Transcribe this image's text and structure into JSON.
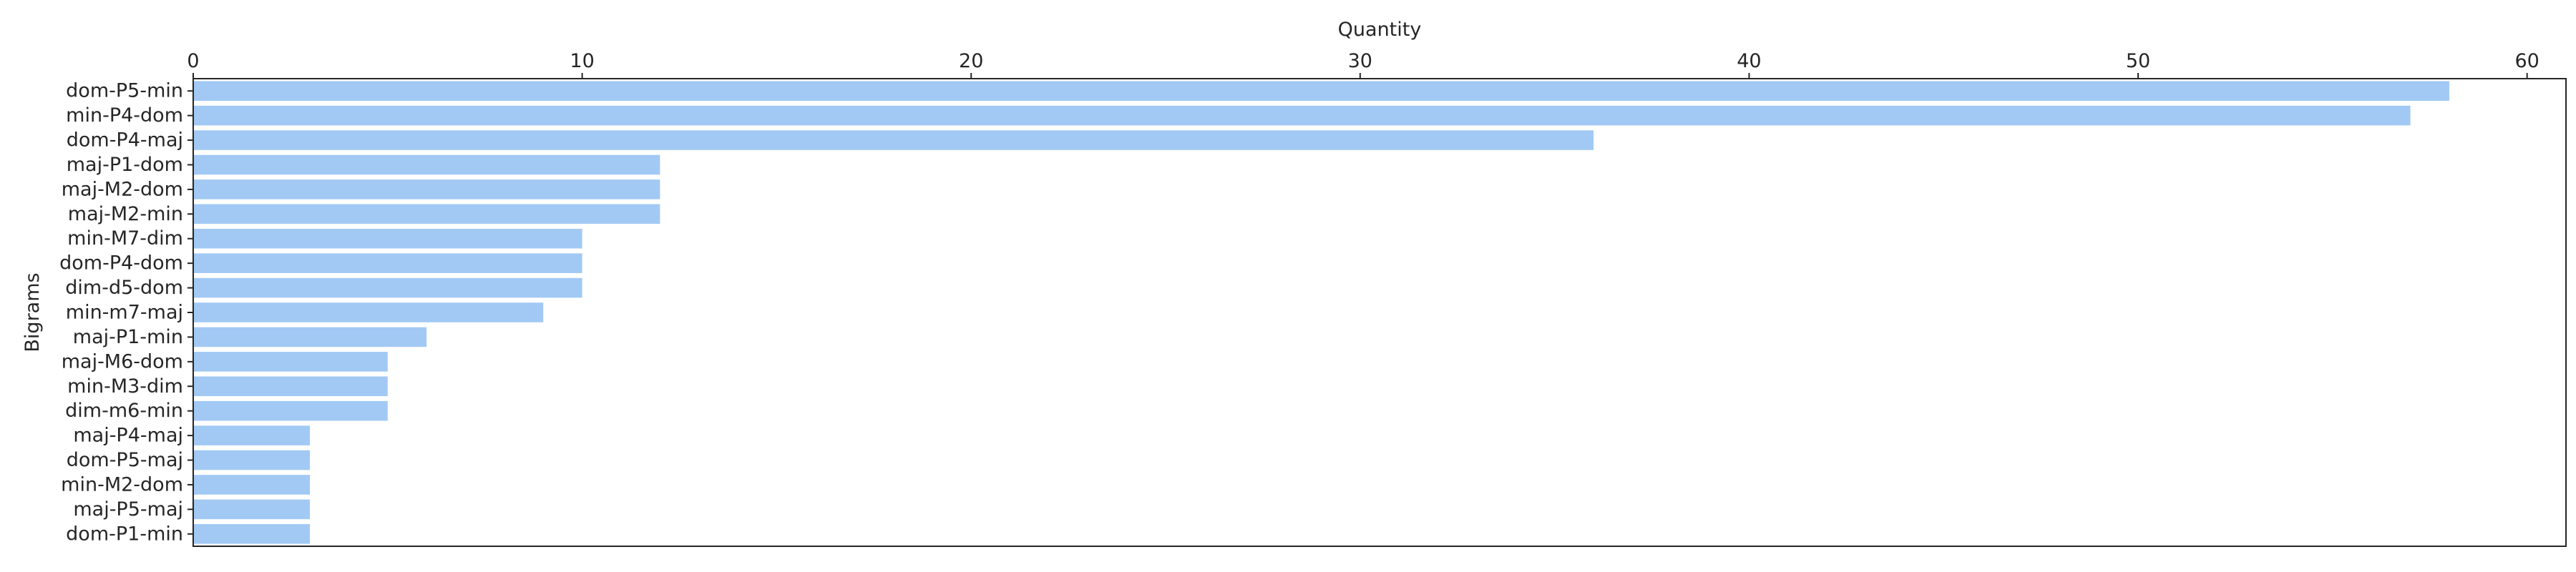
{
  "chart_data": {
    "type": "bar",
    "orientation": "horizontal",
    "title": "",
    "xlabel": "Quantity",
    "ylabel": "Bigrams",
    "xlim": [
      0,
      61
    ],
    "xticks": [
      0,
      10,
      20,
      30,
      40,
      50,
      60
    ],
    "x_axis_position": "top",
    "grid": false,
    "bar_color": "#a1c9f4",
    "categories": [
      "dom-P5-min",
      "min-P4-dom",
      "dom-P4-maj",
      "maj-P1-dom",
      "maj-M2-dom",
      "maj-M2-min",
      "min-M7-dim",
      "dom-P4-dom",
      "dim-d5-dom",
      "min-m7-maj",
      "maj-P1-min",
      "maj-M6-dom",
      "min-M3-dim",
      "dim-m6-min",
      "maj-P4-maj",
      "dom-P5-maj",
      "min-M2-dom",
      "maj-P5-maj",
      "dom-P1-min"
    ],
    "values": [
      58,
      57,
      36,
      12,
      12,
      12,
      10,
      10,
      10,
      9,
      6,
      5,
      5,
      5,
      3,
      3,
      3,
      3,
      3
    ]
  }
}
